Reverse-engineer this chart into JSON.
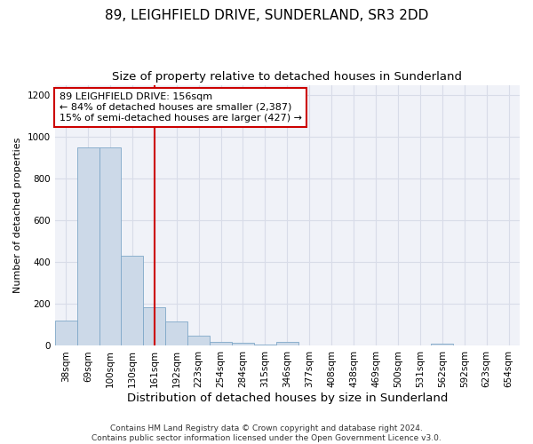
{
  "title": "89, LEIGHFIELD DRIVE, SUNDERLAND, SR3 2DD",
  "subtitle": "Size of property relative to detached houses in Sunderland",
  "xlabel": "Distribution of detached houses by size in Sunderland",
  "ylabel": "Number of detached properties",
  "categories": [
    "38sqm",
    "69sqm",
    "100sqm",
    "130sqm",
    "161sqm",
    "192sqm",
    "223sqm",
    "254sqm",
    "284sqm",
    "315sqm",
    "346sqm",
    "377sqm",
    "408sqm",
    "438sqm",
    "469sqm",
    "500sqm",
    "531sqm",
    "562sqm",
    "592sqm",
    "623sqm",
    "654sqm"
  ],
  "values": [
    120,
    950,
    950,
    430,
    185,
    115,
    50,
    20,
    15,
    5,
    20,
    0,
    0,
    0,
    0,
    0,
    0,
    10,
    0,
    0,
    0
  ],
  "bar_color": "#ccd9e8",
  "bar_edge_color": "#7fa8c8",
  "vline_color": "#cc0000",
  "vline_index": 4,
  "annotation_text": "89 LEIGHFIELD DRIVE: 156sqm\n← 84% of detached houses are smaller (2,387)\n15% of semi-detached houses are larger (427) →",
  "ylim": [
    0,
    1250
  ],
  "yticks": [
    0,
    200,
    400,
    600,
    800,
    1000,
    1200
  ],
  "grid_color": "#d8dce8",
  "bg_color": "#f0f2f8",
  "footer_line1": "Contains HM Land Registry data © Crown copyright and database right 2024.",
  "footer_line2": "Contains public sector information licensed under the Open Government Licence v3.0.",
  "title_fontsize": 11,
  "subtitle_fontsize": 9.5,
  "xlabel_fontsize": 9.5,
  "ylabel_fontsize": 8,
  "tick_fontsize": 7.5,
  "annotation_fontsize": 8,
  "footer_fontsize": 6.5
}
